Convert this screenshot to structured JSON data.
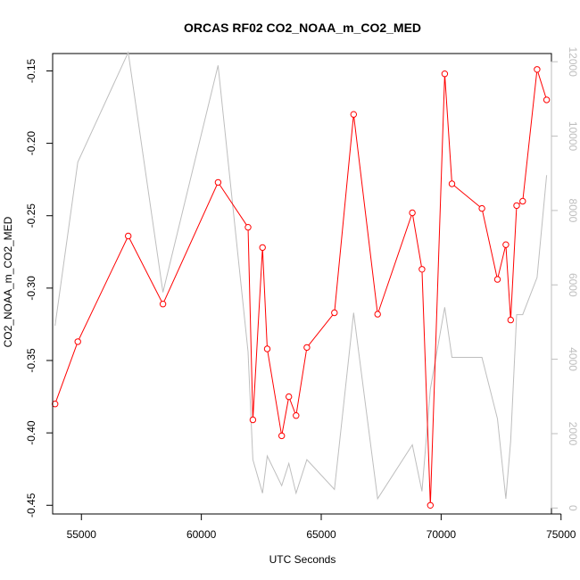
{
  "chart_data": {
    "type": "line",
    "title": "ORCAS RF02 CO2_NOAA_m_CO2_MED",
    "xlabel": "UTC Seconds",
    "ylabel": "CO2_NOAA_m_CO2_MED",
    "xlim": [
      53800,
      74600
    ],
    "ylim": [
      -0.456,
      -0.138
    ],
    "y2lim": [
      -160,
      12220
    ],
    "grid": false,
    "legend": "none",
    "x_ticks": [
      55000,
      60000,
      65000,
      70000,
      75000
    ],
    "x_tick_labels": [
      "55000",
      "60000",
      "65000",
      "70000",
      "75000"
    ],
    "y_ticks": [
      -0.45,
      -0.4,
      -0.35,
      -0.3,
      -0.25,
      -0.2,
      -0.15
    ],
    "y_tick_labels": [
      "-0.45",
      "-0.40",
      "-0.35",
      "-0.30",
      "-0.25",
      "-0.20",
      "-0.15"
    ],
    "y2_ticks": [
      0,
      2000,
      4000,
      6000,
      8000,
      10000,
      12000
    ],
    "y2_tick_labels": [
      "0",
      "2000",
      "4000",
      "6000",
      "8000",
      "10000",
      "12000"
    ],
    "colors": {
      "primary": "#ff0000",
      "secondary": "#bebebe",
      "axis": "#000000"
    },
    "series": [
      {
        "color": "#ff0000",
        "axis": "left",
        "markers": "open-circle",
        "x": [
          53900,
          54850,
          56950,
          58400,
          60700,
          61950,
          62150,
          62550,
          62750,
          63350,
          63650,
          63950,
          64400,
          65550,
          66350,
          67350,
          68800,
          69200,
          69550,
          70150,
          70450,
          71700,
          72350,
          72700,
          72900,
          73150,
          73400,
          74000,
          74400
        ],
        "y": [
          -0.38,
          -0.337,
          -0.264,
          -0.311,
          -0.227,
          -0.258,
          -0.391,
          -0.272,
          -0.342,
          -0.402,
          -0.375,
          -0.388,
          -0.341,
          -0.317,
          -0.18,
          -0.318,
          -0.248,
          -0.287,
          -0.45,
          -0.152,
          -0.228,
          -0.245,
          -0.294,
          -0.27,
          -0.322,
          -0.243,
          -0.24,
          -0.149,
          -0.17
        ]
      },
      {
        "color": "#bebebe",
        "axis": "right",
        "markers": "none",
        "x": [
          53900,
          54850,
          56950,
          58400,
          60700,
          61950,
          62150,
          62550,
          62750,
          63350,
          63650,
          63950,
          64400,
          65550,
          66350,
          67350,
          68800,
          69200,
          69550,
          70150,
          70450,
          71700,
          72350,
          72700,
          72900,
          73150,
          73400,
          74000,
          74400
        ],
        "y": [
          4900,
          9300,
          12250,
          5800,
          11900,
          4200,
          1300,
          400,
          1400,
          600,
          1200,
          400,
          1300,
          500,
          5250,
          250,
          1700,
          450,
          3200,
          5400,
          4050,
          4050,
          2400,
          250,
          1800,
          5200,
          5200,
          6200,
          8950
        ]
      }
    ]
  }
}
